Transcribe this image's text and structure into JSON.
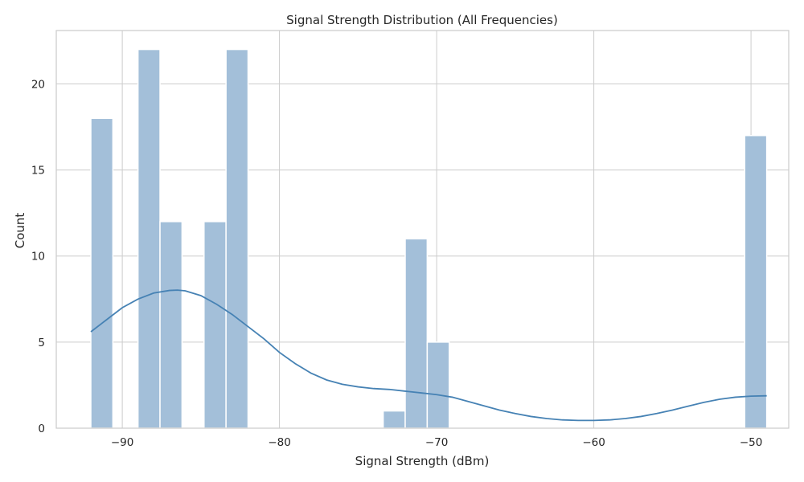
{
  "chart_data": {
    "type": "bar",
    "subtype": "histogram-with-kde",
    "title": "Signal Strength Distribution (All Frequencies)",
    "xlabel": "Signal Strength (dBm)",
    "ylabel": "Count",
    "xlim": [
      -94.2,
      -47.6
    ],
    "ylim": [
      0,
      23.1
    ],
    "xticks": [
      -90,
      -80,
      -70,
      -60,
      -50
    ],
    "yticks": [
      0,
      5,
      10,
      15,
      20
    ],
    "grid": true,
    "legend": "none",
    "colors": {
      "bar": "#a3bfd9",
      "bar_edge": "#ffffff",
      "kde": "#4682b4"
    },
    "bins": [
      {
        "x0": -92.0,
        "x1": -90.6,
        "count": 18
      },
      {
        "x0": -89.0,
        "x1": -87.6,
        "count": 22
      },
      {
        "x0": -87.6,
        "x1": -86.2,
        "count": 12
      },
      {
        "x0": -84.8,
        "x1": -83.4,
        "count": 12
      },
      {
        "x0": -83.4,
        "x1": -82.0,
        "count": 22
      },
      {
        "x0": -73.4,
        "x1": -72.0,
        "count": 1
      },
      {
        "x0": -72.0,
        "x1": -70.6,
        "count": 11
      },
      {
        "x0": -70.6,
        "x1": -69.2,
        "count": 5
      },
      {
        "x0": -50.4,
        "x1": -49.0,
        "count": 17
      }
    ],
    "kde": {
      "x": [
        -92,
        -91,
        -90,
        -89,
        -88,
        -87,
        -86.5,
        -86,
        -85,
        -84,
        -83,
        -82,
        -81,
        -80,
        -79,
        -78,
        -77,
        -76,
        -75,
        -74,
        -73,
        -72,
        -71,
        -70,
        -69,
        -68,
        -67,
        -66,
        -65,
        -64,
        -63,
        -62,
        -61,
        -60,
        -59,
        -58,
        -57,
        -56,
        -55,
        -54,
        -53,
        -52,
        -51,
        -50,
        -49
      ],
      "y": [
        5.6,
        6.3,
        7.0,
        7.5,
        7.85,
        8.0,
        8.02,
        7.98,
        7.7,
        7.2,
        6.6,
        5.9,
        5.2,
        4.4,
        3.75,
        3.2,
        2.8,
        2.55,
        2.4,
        2.3,
        2.25,
        2.15,
        2.05,
        1.95,
        1.8,
        1.55,
        1.3,
        1.05,
        0.85,
        0.68,
        0.56,
        0.48,
        0.45,
        0.45,
        0.48,
        0.56,
        0.68,
        0.85,
        1.05,
        1.28,
        1.5,
        1.68,
        1.8,
        1.86,
        1.88
      ]
    }
  }
}
